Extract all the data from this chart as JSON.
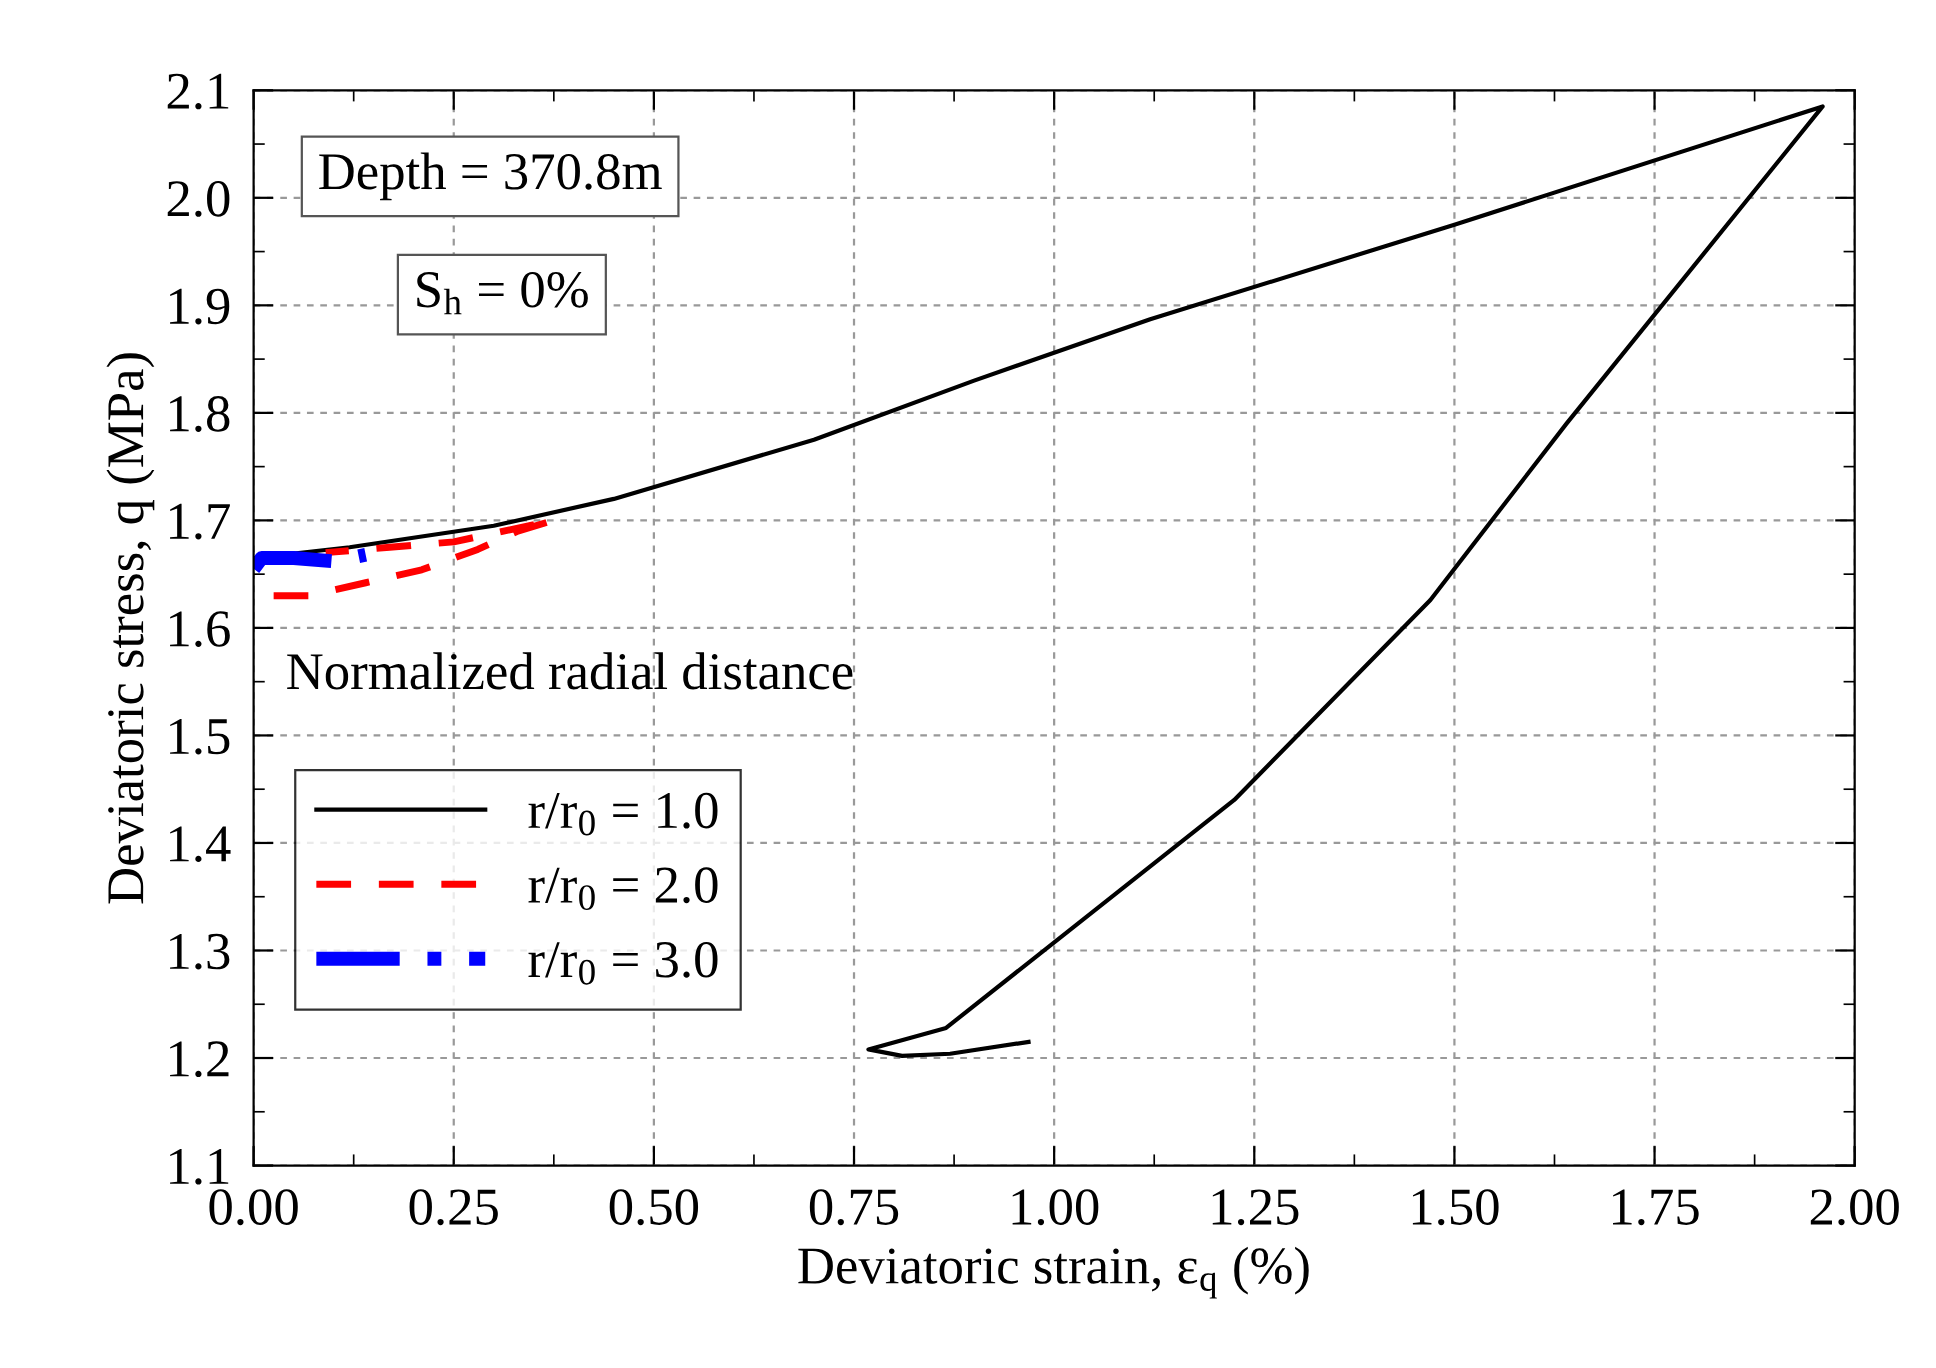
{
  "chart_data": {
    "type": "line",
    "xlabel": "Deviatoric strain, ε$_{q}$ (%)",
    "ylabel": "Deviatoric stress, q (MPa)",
    "legend_title": "Normalized radial distance",
    "annotations": [
      "Depth = 370.8m",
      "S$_{h}$ = 0%"
    ],
    "xlim": [
      0,
      2
    ],
    "ylim": [
      1.1,
      2.1
    ],
    "xticks": [
      {
        "value": 0,
        "label": "0.00"
      },
      {
        "value": 0.25,
        "label": "0.25"
      },
      {
        "value": 0.5,
        "label": "0.50"
      },
      {
        "value": 0.75,
        "label": "0.75"
      },
      {
        "value": 1,
        "label": "1.00"
      },
      {
        "value": 1.25,
        "label": "1.25"
      },
      {
        "value": 1.5,
        "label": "1.50"
      },
      {
        "value": 1.75,
        "label": "1.75"
      },
      {
        "value": 2,
        "label": "2.00"
      }
    ],
    "yticks": [
      1.1,
      1.2,
      1.3,
      1.4,
      1.5,
      1.6,
      1.7,
      1.8,
      1.9,
      {
        "value": 2,
        "label": "2.0"
      },
      2.1
    ],
    "grid": true,
    "legend": "left",
    "series": [
      {
        "name": "r/r$_{0}$ = 1.0",
        "color": "#000000",
        "line_style": "solid",
        "x": [
          0.0,
          0.12,
          0.3,
          0.45,
          0.7,
          0.9,
          1.12,
          1.5,
          1.96,
          1.64,
          1.47,
          1.225,
          0.865,
          0.768,
          0.81,
          0.87,
          0.968
        ],
        "values": [
          1.665,
          1.675,
          1.695,
          1.72,
          1.775,
          1.83,
          1.887,
          1.975,
          2.085,
          1.79,
          1.626,
          1.44,
          1.228,
          1.208,
          1.202,
          1.204,
          1.215
        ]
      },
      {
        "name": "r/r$_{0}$ = 2.0",
        "color": "#ff0000",
        "line_style": "dashed",
        "x": [
          0.025,
          0.07,
          0.14,
          0.21,
          0.28,
          0.33,
          0.375,
          0.3,
          0.25,
          0.17,
          0.09
        ],
        "values": [
          1.63,
          1.63,
          1.642,
          1.654,
          1.673,
          1.69,
          1.7,
          1.688,
          1.68,
          1.675,
          1.67
        ]
      },
      {
        "name": "r/r$_{0}$ = 3.0",
        "color": "#0000ff",
        "line_style": "dashdot",
        "x": [
          0.0,
          0.01,
          0.05,
          0.1,
          0.14
        ],
        "values": [
          1.655,
          1.665,
          1.665,
          1.662,
          1.668
        ]
      }
    ]
  }
}
